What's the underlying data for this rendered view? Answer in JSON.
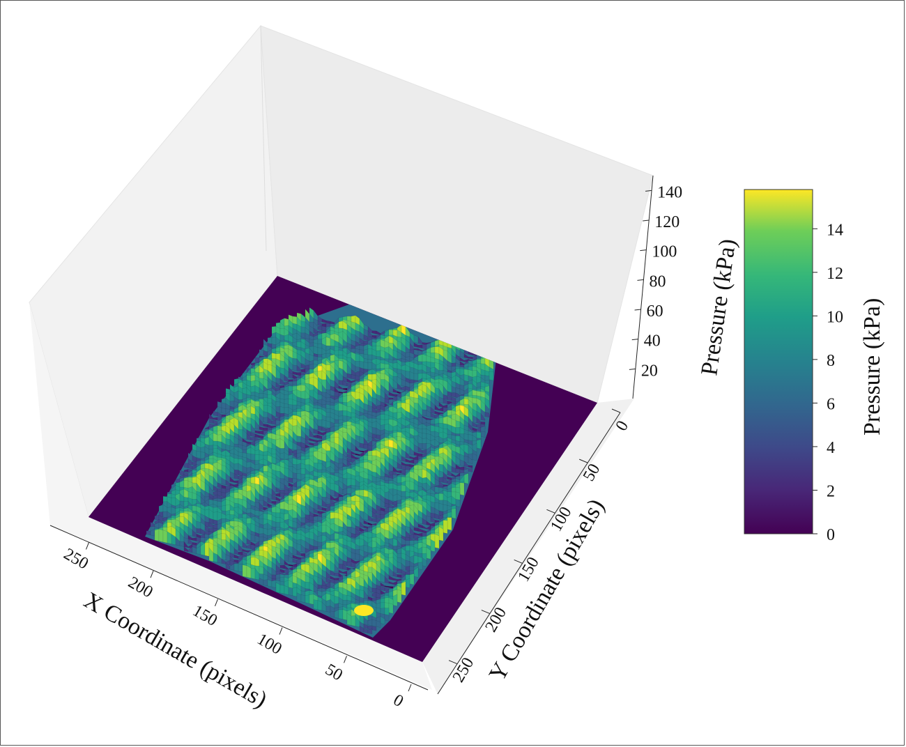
{
  "chart_data": {
    "type": "surface3d",
    "title": "",
    "colormap": "viridis",
    "x_axis": {
      "label": "X Coordinate (pixels)",
      "ticks": [
        0,
        50,
        100,
        150,
        200,
        250
      ],
      "range": [
        0,
        280
      ]
    },
    "y_axis": {
      "label": "Y Coordinate (pixels)",
      "ticks": [
        0,
        50,
        100,
        150,
        200,
        250
      ],
      "range": [
        0,
        280
      ]
    },
    "z_axis": {
      "label": "Pressure (kPa)",
      "ticks": [
        20,
        40,
        60,
        80,
        100,
        120,
        140
      ],
      "range": [
        0,
        150
      ]
    },
    "colorbar": {
      "label": "Pressure (kPa)",
      "ticks": [
        0,
        2,
        4,
        6,
        8,
        10,
        12,
        14
      ],
      "range": [
        0,
        15.8
      ]
    },
    "surface": {
      "description_of_data": "fingerprint-like ridge pattern of pressure values",
      "value_range": [
        0,
        15.8
      ]
    },
    "colors": {
      "background_pane": "#f2f2f2",
      "floor": "#440154",
      "max": "#fde725"
    }
  }
}
